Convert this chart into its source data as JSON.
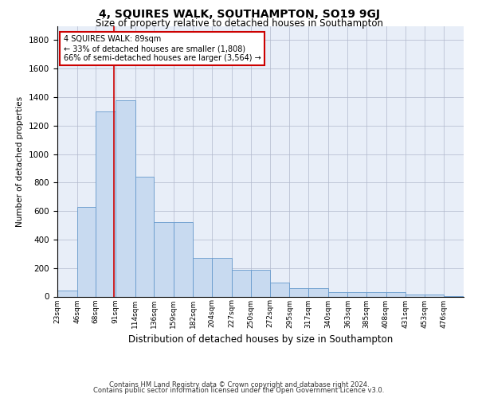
{
  "title": "4, SQUIRES WALK, SOUTHAMPTON, SO19 9GJ",
  "subtitle": "Size of property relative to detached houses in Southampton",
  "xlabel": "Distribution of detached houses by size in Southampton",
  "ylabel": "Number of detached properties",
  "footnote1": "Contains HM Land Registry data © Crown copyright and database right 2024.",
  "footnote2": "Contains public sector information licensed under the Open Government Licence v3.0.",
  "annotation_line1": "4 SQUIRES WALK: 89sqm",
  "annotation_line2": "← 33% of detached houses are smaller (1,808)",
  "annotation_line3": "66% of semi-detached houses are larger (3,564) →",
  "property_size_sqm": 89,
  "bar_color": "#c8daf0",
  "bar_edge_color": "#6699cc",
  "vline_color": "#cc0000",
  "annotation_box_edge": "#cc0000",
  "categories": [
    "23sqm",
    "46sqm",
    "68sqm",
    "91sqm",
    "114sqm",
    "136sqm",
    "159sqm",
    "182sqm",
    "204sqm",
    "227sqm",
    "250sqm",
    "272sqm",
    "295sqm",
    "317sqm",
    "340sqm",
    "363sqm",
    "385sqm",
    "408sqm",
    "431sqm",
    "453sqm",
    "476sqm"
  ],
  "bin_edges": [
    23,
    46,
    68,
    91,
    114,
    136,
    159,
    182,
    204,
    227,
    250,
    272,
    295,
    317,
    340,
    363,
    385,
    408,
    431,
    453,
    476,
    499
  ],
  "values": [
    40,
    630,
    1300,
    1380,
    840,
    525,
    525,
    270,
    270,
    185,
    185,
    100,
    60,
    60,
    30,
    30,
    28,
    28,
    15,
    12,
    5
  ],
  "ylim": [
    0,
    1900
  ],
  "yticks": [
    0,
    200,
    400,
    600,
    800,
    1000,
    1200,
    1400,
    1600,
    1800
  ],
  "grid_color": "#b0b8cc",
  "background_color": "#e8eef8",
  "title_fontsize": 10,
  "subtitle_fontsize": 8.5
}
